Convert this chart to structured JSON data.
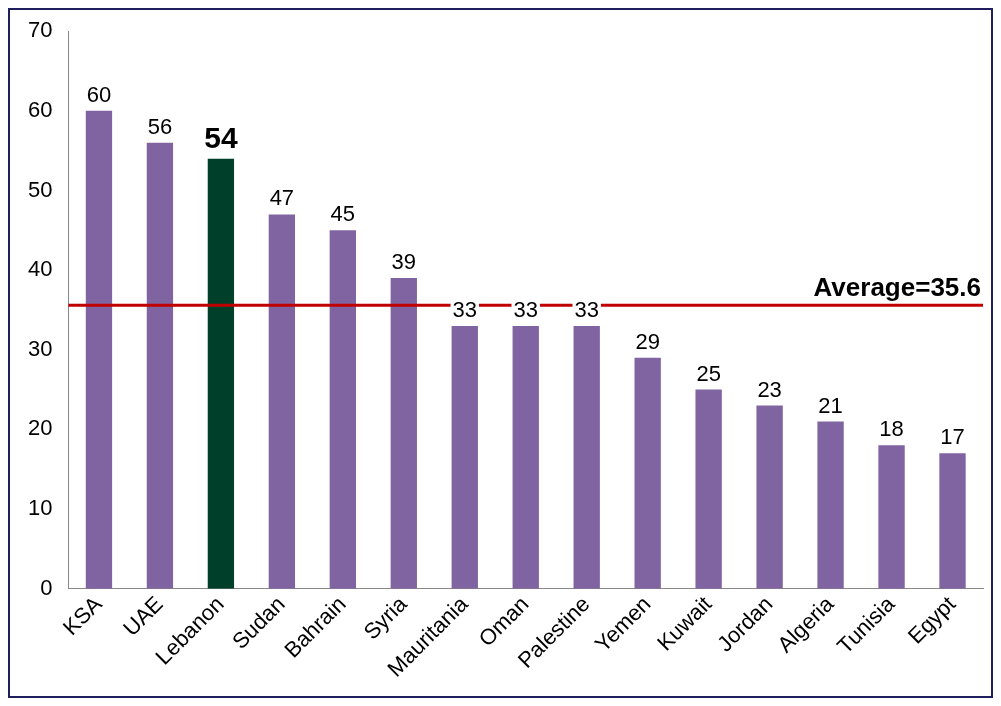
{
  "chart_data": {
    "type": "bar",
    "categories": [
      "KSA",
      "UAE",
      "Lebanon",
      "Sudan",
      "Bahrain",
      "Syria",
      "Mauritania",
      "Oman",
      "Palestine",
      "Yemen",
      "Kuwait",
      "Jordan",
      "Algeria",
      "Tunisia",
      "Egypt"
    ],
    "values": [
      60,
      56,
      54,
      47,
      45,
      39,
      33,
      33,
      33,
      29,
      25,
      23,
      21,
      18,
      17
    ],
    "colors": [
      "#8064a2",
      "#8064a2",
      "#00402a",
      "#8064a2",
      "#8064a2",
      "#8064a2",
      "#8064a2",
      "#8064a2",
      "#8064a2",
      "#8064a2",
      "#8064a2",
      "#8064a2",
      "#8064a2",
      "#8064a2",
      "#8064a2"
    ],
    "ylim": [
      0,
      70
    ],
    "yticks": [
      0,
      10,
      20,
      30,
      40,
      50,
      60,
      70
    ],
    "grid": false,
    "legend": false,
    "data_labels": true,
    "ref_lines": [
      {
        "axis": "y",
        "value": 35.6,
        "label": "Average=35.6",
        "color": "#c00000"
      }
    ]
  }
}
